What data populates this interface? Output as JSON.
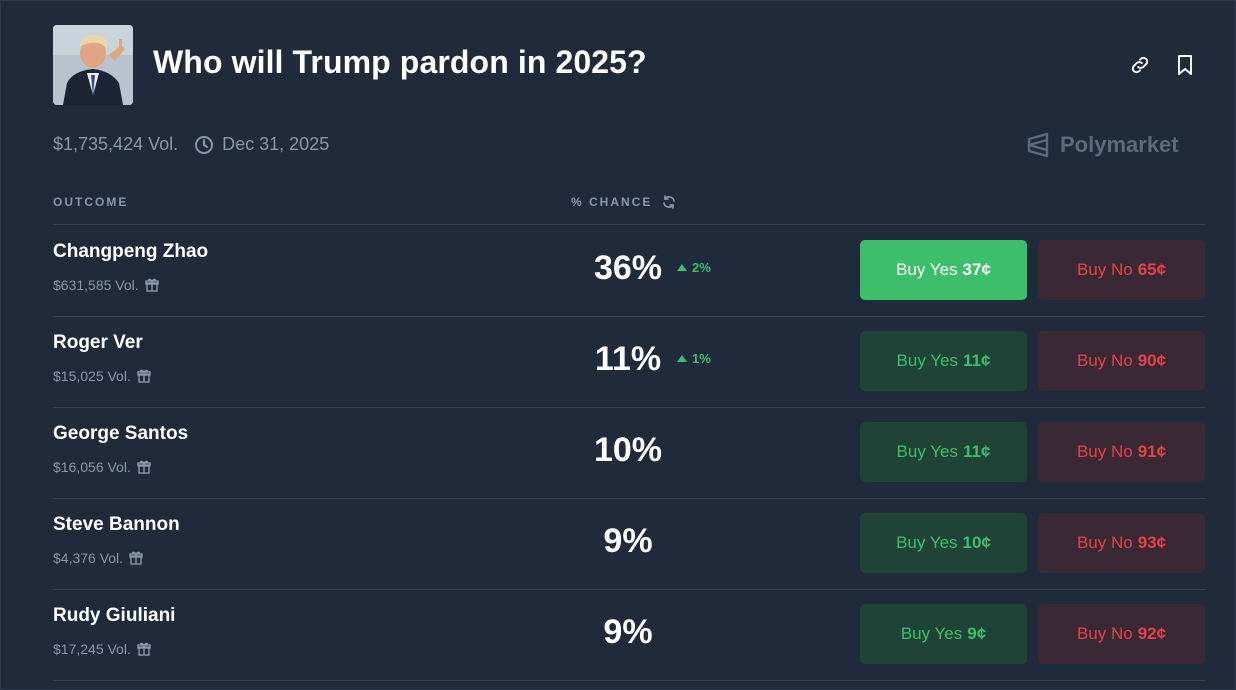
{
  "market": {
    "title": "Who will Trump pardon in 2025?",
    "volume": "$1,735,424 Vol.",
    "end_date": "Dec 31, 2025",
    "brand": "Polymarket"
  },
  "columns": {
    "outcome": "OUTCOME",
    "chance": "% CHANCE"
  },
  "buttons": {
    "yes_prefix": "Buy Yes",
    "no_prefix": "Buy No"
  },
  "rows": [
    {
      "name": "Changpeng Zhao",
      "volume": "$631,585 Vol.",
      "chance": "36%",
      "delta": "2%",
      "yes_price": "37¢",
      "no_price": "65¢",
      "yes_active": true
    },
    {
      "name": "Roger Ver",
      "volume": "$15,025 Vol.",
      "chance": "11%",
      "delta": "1%",
      "yes_price": "11¢",
      "no_price": "90¢",
      "yes_active": false
    },
    {
      "name": "George Santos",
      "volume": "$16,056 Vol.",
      "chance": "10%",
      "delta": "",
      "yes_price": "11¢",
      "no_price": "91¢",
      "yes_active": false
    },
    {
      "name": "Steve Bannon",
      "volume": "$4,376 Vol.",
      "chance": "9%",
      "delta": "",
      "yes_price": "10¢",
      "no_price": "93¢",
      "yes_active": false
    },
    {
      "name": "Rudy Giuliani",
      "volume": "$17,245 Vol.",
      "chance": "9%",
      "delta": "",
      "yes_price": "9¢",
      "no_price": "92¢",
      "yes_active": false
    }
  ],
  "colors": {
    "background": "#1f2a3a",
    "yes_green": "#3dbe6b",
    "no_red": "#e0434b",
    "muted": "#8a98ab"
  },
  "icons": {
    "link": "link-icon",
    "bookmark": "bookmark-icon",
    "clock": "clock-icon",
    "gift": "gift-icon",
    "refresh": "refresh-icon",
    "brand_logo": "polymarket-logo-icon"
  }
}
